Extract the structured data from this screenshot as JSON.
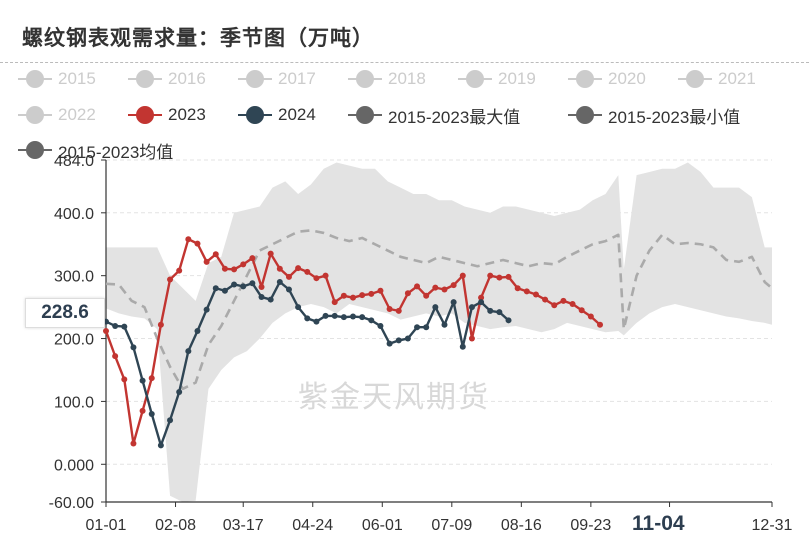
{
  "title": "螺纹钢表观需求量：季节图（万吨）",
  "watermark": "紫金天风期货",
  "legend": [
    {
      "label": "2015",
      "color": "#cccccc",
      "active": false
    },
    {
      "label": "2016",
      "color": "#cccccc",
      "active": false
    },
    {
      "label": "2017",
      "color": "#cccccc",
      "active": false
    },
    {
      "label": "2018",
      "color": "#cccccc",
      "active": false
    },
    {
      "label": "2019",
      "color": "#cccccc",
      "active": false
    },
    {
      "label": "2020",
      "color": "#cccccc",
      "active": false
    },
    {
      "label": "2021",
      "color": "#cccccc",
      "active": false
    },
    {
      "label": "2022",
      "color": "#cccccc",
      "active": false
    },
    {
      "label": "2023",
      "color": "#c23531",
      "active": true
    },
    {
      "label": "2024",
      "color": "#2f4554",
      "active": true
    },
    {
      "label": "2015-2023最大值",
      "color": "#666666",
      "active": true
    },
    {
      "label": "2015-2023最小值",
      "color": "#666666",
      "active": true
    },
    {
      "label": "2015-2023均值",
      "color": "#666666",
      "active": true
    }
  ],
  "hover": {
    "value": "228.6",
    "x_label": "11-04"
  },
  "chart_data": {
    "type": "line",
    "title": "螺纹钢表观需求量：季节图（万吨）",
    "y_ticks": [
      "484.0",
      "400.0",
      "300.0",
      "200.0",
      "100.0",
      "0.000",
      "-60.00"
    ],
    "y_tick_values": [
      484,
      400,
      300,
      200,
      100,
      0,
      -60
    ],
    "ylim": [
      -60,
      484
    ],
    "x_ticks": [
      "01-01",
      "02-08",
      "03-17",
      "04-24",
      "06-01",
      "07-09",
      "08-16",
      "09-23",
      "11-04",
      "12-31"
    ],
    "x_tick_days": [
      0,
      38,
      75,
      113,
      151,
      189,
      227,
      265,
      308,
      364
    ],
    "xlim_days": [
      0,
      364
    ],
    "grid": true,
    "band": {
      "name_max": "2015-2023最大值",
      "name_min": "2015-2023最小值",
      "days": [
        0,
        7,
        14,
        21,
        28,
        35,
        42,
        49,
        56,
        63,
        70,
        77,
        84,
        91,
        98,
        105,
        112,
        119,
        126,
        133,
        140,
        147,
        154,
        161,
        168,
        175,
        182,
        189,
        196,
        203,
        210,
        217,
        224,
        231,
        238,
        245,
        252,
        259,
        266,
        273,
        280,
        283,
        290,
        297,
        304,
        311,
        318,
        325,
        332,
        339,
        346,
        353,
        360,
        364
      ],
      "max": [
        345,
        345,
        345,
        345,
        345,
        300,
        280,
        260,
        320,
        330,
        400,
        405,
        410,
        440,
        450,
        430,
        445,
        470,
        480,
        475,
        470,
        470,
        450,
        440,
        430,
        430,
        420,
        420,
        410,
        405,
        400,
        410,
        410,
        405,
        400,
        395,
        400,
        405,
        420,
        430,
        460,
        310,
        460,
        465,
        470,
        470,
        480,
        465,
        440,
        440,
        440,
        425,
        345,
        345
      ],
      "min": [
        248,
        240,
        235,
        232,
        215,
        -50,
        -60,
        -58,
        120,
        150,
        170,
        180,
        200,
        225,
        240,
        250,
        255,
        250,
        240,
        255,
        250,
        245,
        240,
        230,
        235,
        240,
        235,
        240,
        225,
        220,
        215,
        218,
        220,
        215,
        210,
        215,
        225,
        220,
        215,
        210,
        212,
        205,
        225,
        240,
        250,
        255,
        250,
        245,
        240,
        235,
        232,
        228,
        225,
        222
      ]
    },
    "series": [
      {
        "name": "2015-2023均值",
        "color": "#aaaaaa",
        "dashed": true,
        "days": [
          0,
          7,
          14,
          21,
          28,
          35,
          42,
          49,
          56,
          63,
          70,
          77,
          84,
          91,
          98,
          105,
          112,
          119,
          126,
          133,
          140,
          147,
          154,
          161,
          168,
          175,
          182,
          189,
          196,
          203,
          210,
          217,
          224,
          231,
          238,
          245,
          252,
          259,
          266,
          273,
          280,
          283,
          290,
          297,
          304,
          311,
          318,
          325,
          332,
          339,
          346,
          353,
          360,
          364
        ],
        "values": [
          287,
          286,
          260,
          250,
          200,
          155,
          120,
          130,
          190,
          220,
          260,
          300,
          340,
          350,
          360,
          370,
          372,
          368,
          360,
          355,
          360,
          350,
          340,
          330,
          325,
          320,
          330,
          325,
          320,
          315,
          320,
          325,
          320,
          315,
          320,
          318,
          330,
          340,
          350,
          355,
          365,
          215,
          300,
          340,
          365,
          350,
          352,
          350,
          345,
          325,
          322,
          330,
          290,
          280
        ]
      },
      {
        "name": "2023",
        "color": "#c23531",
        "days": [
          0,
          5,
          10,
          15,
          20,
          25,
          30,
          35,
          40,
          45,
          50,
          55,
          60,
          65,
          70,
          75,
          80,
          85,
          90,
          95,
          100,
          105,
          110,
          115,
          120,
          125,
          130,
          135,
          140,
          145,
          150,
          155,
          160,
          165,
          170,
          175,
          180,
          185,
          190,
          195,
          200,
          205,
          210,
          215,
          220,
          225,
          230,
          235,
          240,
          245,
          250,
          255,
          260,
          265,
          270,
          275,
          280,
          285,
          290,
          295,
          300,
          305,
          310,
          315,
          320,
          325,
          330,
          335,
          340,
          345,
          350,
          355,
          360
        ],
        "values": [
          212,
          172,
          135,
          33,
          85,
          137,
          222,
          294,
          308,
          358,
          351,
          322,
          334,
          311,
          310,
          318,
          328,
          282,
          335,
          311,
          298,
          312,
          306,
          296,
          300,
          258,
          268,
          265,
          269,
          271,
          276,
          247,
          244,
          272,
          283,
          268,
          281,
          278,
          285,
          300,
          200,
          265,
          300,
          297,
          298,
          280,
          275,
          270,
          262,
          253,
          260,
          255,
          245,
          235,
          222,
          0,
          0,
          0,
          0,
          0,
          0,
          0,
          0,
          0,
          0,
          0,
          0,
          0,
          0,
          0,
          0,
          0,
          0
        ],
        "n": 55
      },
      {
        "name": "2024",
        "color": "#2f4554",
        "days": [
          0,
          5,
          10,
          15,
          20,
          25,
          30,
          35,
          40,
          45,
          50,
          55,
          60,
          65,
          70,
          75,
          80,
          85,
          90,
          95,
          100,
          105,
          110,
          115,
          120,
          125,
          130,
          135,
          140,
          145,
          150,
          155,
          160,
          165,
          170,
          175,
          180,
          185,
          190,
          195,
          200,
          205,
          210,
          215,
          220,
          225
        ],
        "values": [
          227,
          220,
          219,
          186,
          133,
          80,
          30,
          70,
          115,
          180,
          212,
          246,
          280,
          276,
          286,
          283,
          288,
          266,
          262,
          290,
          278,
          250,
          232,
          227,
          236,
          236,
          234,
          235,
          234,
          229,
          220,
          192,
          197,
          200,
          218,
          218,
          250,
          222,
          258,
          187,
          250,
          258,
          244,
          242,
          229,
          0
        ],
        "n": 45
      }
    ]
  }
}
